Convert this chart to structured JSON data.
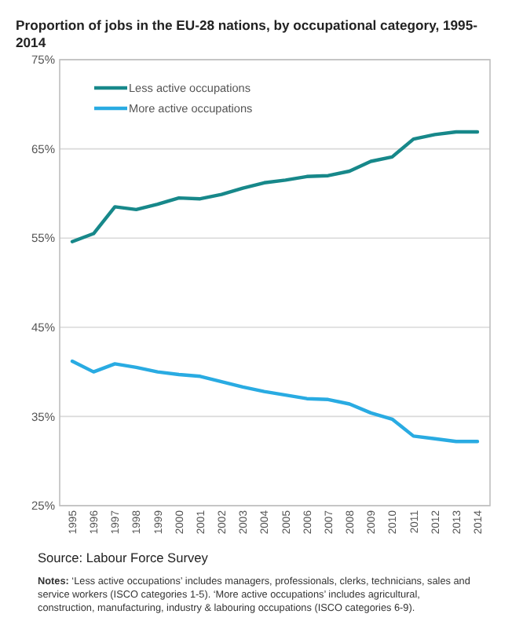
{
  "chart_data": {
    "type": "line",
    "title": "Proportion of jobs in the EU-28 nations, by occupational category, 1995-2014",
    "categories": [
      "1995",
      "1996",
      "1997",
      "1998",
      "1999",
      "2000",
      "2001",
      "2002",
      "2003",
      "2004",
      "2005",
      "2006",
      "2007",
      "2008",
      "2009",
      "2010",
      "2011",
      "2012",
      "2013",
      "2014"
    ],
    "series": [
      {
        "name": "Less active occupations",
        "color": "#17888a",
        "values": [
          54.6,
          55.5,
          58.5,
          58.2,
          58.8,
          59.5,
          59.4,
          59.9,
          60.6,
          61.2,
          61.5,
          61.9,
          62.0,
          62.5,
          63.6,
          64.1,
          66.1,
          66.6,
          66.9,
          66.9
        ]
      },
      {
        "name": "More active occupations",
        "color": "#29abe2",
        "values": [
          41.2,
          40.0,
          40.9,
          40.5,
          40.0,
          39.7,
          39.5,
          38.9,
          38.3,
          37.8,
          37.4,
          37.0,
          36.9,
          36.4,
          35.4,
          34.7,
          32.8,
          32.5,
          32.2,
          32.2
        ]
      }
    ],
    "ylim": [
      25,
      75
    ],
    "yticks": [
      {
        "value": 25,
        "label": "25%"
      },
      {
        "value": 35,
        "label": "35%"
      },
      {
        "value": 45,
        "label": "45%"
      },
      {
        "value": 55,
        "label": "55%"
      },
      {
        "value": 65,
        "label": "65%"
      },
      {
        "value": 75,
        "label": "75%"
      }
    ],
    "grid": "y",
    "legend": "top left",
    "marker": "none",
    "line_style": "solid",
    "annotations": [
      "Source: Labour Force Survey",
      "Notes: ‘Less active occupations’ includes managers, professionals, clerks, technicians, sales and service workers (ISCO categories 1-5). ‘More active occupations’ includes agricultural, construction, manufacturing, industry & labouring occupations (ISCO categories 6-9)."
    ]
  }
}
